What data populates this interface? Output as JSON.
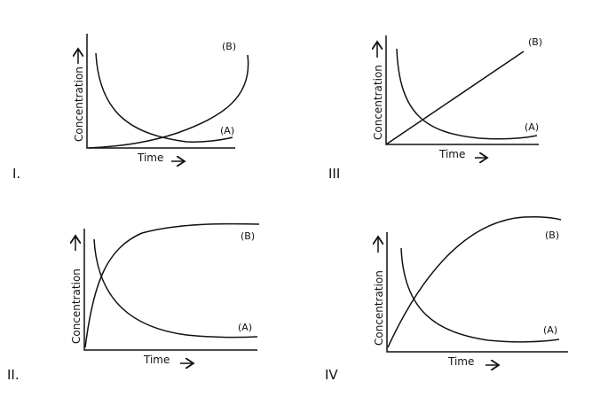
{
  "panels": [
    {
      "id": "I",
      "number": "I.",
      "ylabel": "Concentration",
      "xlabel": "Time",
      "curve_a": "(A)",
      "curve_b": "(B)"
    },
    {
      "id": "III",
      "number": "III",
      "ylabel": "Concentration",
      "xlabel": "Time",
      "curve_a": "(A)",
      "curve_b": "(B)"
    },
    {
      "id": "II",
      "number": "II.",
      "ylabel": "Concentration",
      "xlabel": "Time",
      "curve_a": "(A)",
      "curve_b": "(B)"
    },
    {
      "id": "IV",
      "number": "IV",
      "ylabel": "Concentration",
      "xlabel": "Time",
      "curve_a": "(A)",
      "curve_b": "(B)"
    }
  ],
  "arrow_glyph": "→"
}
